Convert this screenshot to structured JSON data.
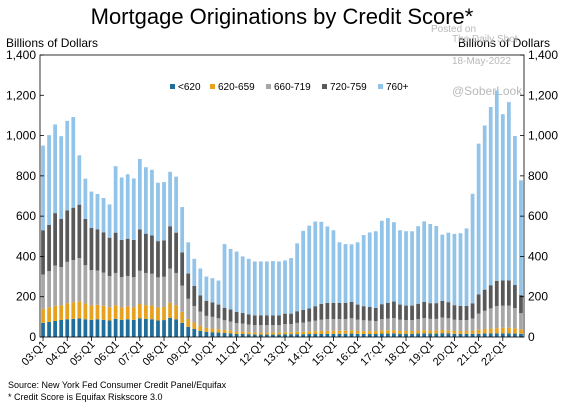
{
  "header": {
    "title": "Mortgage Originations by Credit Score*",
    "left_unit": "Billions of Dollars",
    "right_unit": "Billions of Dollars"
  },
  "watermark": {
    "line1": "Posted on",
    "line2": "The Daily Shot",
    "date": "18-May-2022",
    "handle": "@SoberLook"
  },
  "footer": {
    "source": "Source: New York Fed Consumer Credit Panel/Equifax",
    "note": "* Credit Score is Equifax Riskscore 3.0"
  },
  "chart_data": {
    "type": "bar",
    "stacked": true,
    "title": "Mortgage Originations by Credit Score*",
    "ylabel": "Billions of Dollars",
    "ylim": [
      0,
      1400
    ],
    "yticks": [
      0,
      200,
      400,
      600,
      800,
      1000,
      1200,
      1400
    ],
    "y_tick_labels": [
      "0",
      "200",
      "400",
      "600",
      "800",
      "1,000",
      "1,200",
      "1,400"
    ],
    "x_tick_labels": [
      "03:Q1",
      "04:Q1",
      "05:Q1",
      "06:Q1",
      "07:Q1",
      "08:Q1",
      "09:Q1",
      "10:Q1",
      "11:Q1",
      "12:Q1",
      "13:Q1",
      "14:Q1",
      "15:Q1",
      "16:Q1",
      "17:Q1",
      "18:Q1",
      "19:Q1",
      "20:Q1",
      "21:Q1",
      "22:Q1"
    ],
    "legend_position": "top-left, horizontal",
    "grid": false,
    "series": [
      {
        "name": "<620",
        "color": "#1f6f9a",
        "values": [
          70,
          75,
          80,
          85,
          88,
          90,
          92,
          88,
          85,
          88,
          85,
          82,
          90,
          85,
          88,
          85,
          92,
          90,
          88,
          82,
          84,
          95,
          88,
          70,
          50,
          40,
          30,
          25,
          24,
          22,
          20,
          18,
          15,
          15,
          14,
          12,
          12,
          12,
          12,
          12,
          14,
          14,
          14,
          14,
          15,
          15,
          15,
          16,
          16,
          16,
          16,
          17,
          16,
          15,
          15,
          15,
          17,
          17,
          18,
          16,
          16,
          16,
          17,
          18,
          17,
          17,
          19,
          18,
          16,
          16,
          16,
          16,
          16,
          18,
          18,
          18,
          18,
          18,
          17,
          16
        ]
      },
      {
        "name": "620-659",
        "color": "#e6a21f",
        "values": [
          70,
          72,
          75,
          72,
          80,
          82,
          85,
          78,
          72,
          72,
          70,
          66,
          68,
          62,
          65,
          62,
          72,
          68,
          68,
          64,
          65,
          75,
          70,
          55,
          40,
          32,
          26,
          20,
          18,
          17,
          15,
          14,
          12,
          12,
          10,
          10,
          10,
          10,
          10,
          10,
          10,
          10,
          12,
          12,
          13,
          14,
          15,
          15,
          15,
          15,
          15,
          16,
          14,
          14,
          14,
          14,
          16,
          16,
          16,
          14,
          14,
          14,
          15,
          16,
          15,
          15,
          16,
          15,
          14,
          14,
          14,
          16,
          20,
          22,
          24,
          26,
          28,
          28,
          26,
          22
        ]
      },
      {
        "name": "660-719",
        "color": "#a6a6a6",
        "values": [
          170,
          180,
          200,
          190,
          205,
          210,
          215,
          190,
          175,
          170,
          165,
          155,
          160,
          150,
          150,
          150,
          165,
          160,
          158,
          150,
          150,
          170,
          160,
          130,
          100,
          82,
          70,
          60,
          58,
          54,
          48,
          45,
          42,
          40,
          38,
          37,
          37,
          37,
          37,
          37,
          40,
          40,
          44,
          46,
          48,
          52,
          56,
          58,
          58,
          58,
          58,
          60,
          56,
          54,
          52,
          50,
          56,
          58,
          60,
          56,
          54,
          54,
          57,
          60,
          58,
          58,
          62,
          60,
          56,
          54,
          54,
          60,
          80,
          90,
          100,
          110,
          110,
          110,
          100,
          80
        ]
      },
      {
        "name": "720-759",
        "color": "#595959",
        "values": [
          220,
          230,
          260,
          240,
          255,
          260,
          265,
          230,
          210,
          205,
          200,
          190,
          200,
          185,
          185,
          185,
          205,
          195,
          190,
          180,
          180,
          210,
          200,
          165,
          125,
          100,
          80,
          75,
          72,
          68,
          62,
          60,
          55,
          52,
          50,
          48,
          48,
          48,
          48,
          48,
          52,
          52,
          58,
          62,
          66,
          72,
          78,
          80,
          80,
          80,
          80,
          82,
          75,
          70,
          68,
          66,
          74,
          78,
          82,
          75,
          72,
          72,
          76,
          80,
          78,
          78,
          82,
          80,
          72,
          70,
          70,
          75,
          95,
          105,
          115,
          125,
          125,
          125,
          115,
          90
        ]
      },
      {
        "name": "760+",
        "color": "#92c3e8",
        "values": [
          420,
          445,
          440,
          410,
          445,
          450,
          245,
          200,
          180,
          175,
          170,
          165,
          330,
          310,
          320,
          305,
          350,
          330,
          326,
          290,
          290,
          270,
          278,
          225,
          155,
          134,
          134,
          120,
          120,
          119,
          316,
          300,
          300,
          281,
          276,
          268,
          268,
          268,
          270,
          268,
          264,
          276,
          337,
          393,
          411,
          420,
          408,
          380,
          361,
          301,
          292,
          285,
          309,
          353,
          370,
          380,
          414,
          421,
          394,
          369,
          369,
          369,
          385,
          400,
          393,
          383,
          329,
          345,
          354,
          361,
          385,
          544,
          749,
          815,
          885,
          945,
          825,
          885,
          740,
          570
        ]
      }
    ]
  }
}
